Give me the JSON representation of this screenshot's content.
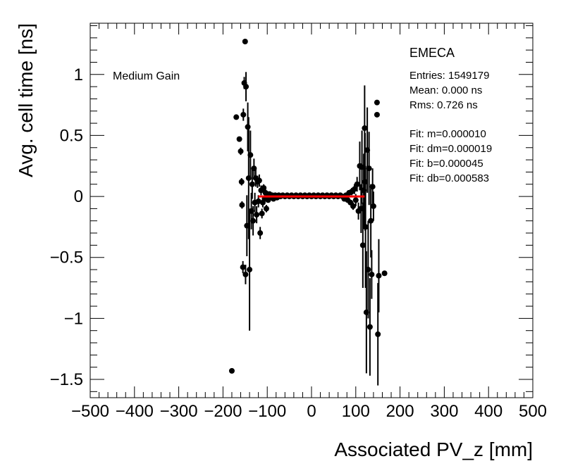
{
  "chart_data": {
    "type": "scatter",
    "title": "",
    "xlabel": "Associated PV_z [mm]",
    "ylabel": "Avg. cell time [ns]",
    "xlim": [
      -500,
      500
    ],
    "ylim": [
      -1.65,
      1.42
    ],
    "xticks": [
      -500,
      -400,
      -300,
      -200,
      -100,
      0,
      100,
      200,
      300,
      400,
      500
    ],
    "xtick_labels": [
      "−500",
      "−400",
      "−300",
      "−200",
      "−100",
      "0",
      "100",
      "200",
      "300",
      "400",
      "500"
    ],
    "yticks": [
      -1.5,
      -1,
      -0.5,
      0,
      0.5,
      1
    ],
    "ytick_labels": [
      "−1.5",
      "−1",
      "−0.5",
      "0",
      "0.5",
      "1"
    ],
    "grid": false,
    "annotation": "Medium Gain",
    "stats_box": {
      "title": "EMECA",
      "lines": [
        "Entries: 1549179",
        "Mean: 0.000 ns",
        "Rms: 0.726 ns",
        "",
        "Fit: m=0.000010",
        "Fit: dm=0.000019",
        "Fit: b=0.000045",
        "Fit: db=0.000583"
      ]
    },
    "fit_line": {
      "x": [
        -120,
        120
      ],
      "y": [
        0.0,
        0.0
      ],
      "color": "#ff0000"
    },
    "marker_color": "#000000",
    "points": [
      {
        "x": -180,
        "y": -1.43,
        "err": 0.0
      },
      {
        "x": -170,
        "y": 0.65,
        "err": 0.0
      },
      {
        "x": -163,
        "y": 0.47,
        "err": 0.0
      },
      {
        "x": -160,
        "y": 0.37,
        "err": 0.03
      },
      {
        "x": -158,
        "y": 0.12,
        "err": 0.03
      },
      {
        "x": -157,
        "y": -0.07,
        "err": 0.03
      },
      {
        "x": -155,
        "y": -0.58,
        "err": 0.05
      },
      {
        "x": -154,
        "y": 0.67,
        "err": 0.05
      },
      {
        "x": -152,
        "y": 0.93,
        "err": 0.05
      },
      {
        "x": -150,
        "y": 1.27,
        "err": 0.0
      },
      {
        "x": -149,
        "y": -0.64,
        "err": 0.08
      },
      {
        "x": -148,
        "y": 0.9,
        "err": 0.12
      },
      {
        "x": -146,
        "y": -0.24,
        "err": 0.25
      },
      {
        "x": -144,
        "y": 0.57,
        "err": 0.2
      },
      {
        "x": -142,
        "y": 0.15,
        "err": 0.5
      },
      {
        "x": -140,
        "y": -0.6,
        "err": 0.5
      },
      {
        "x": -138,
        "y": 0.34,
        "err": 0.2
      },
      {
        "x": -136,
        "y": -0.12,
        "err": 0.15
      },
      {
        "x": -134,
        "y": 0.1,
        "err": 0.12
      },
      {
        "x": -132,
        "y": -0.2,
        "err": 0.12
      },
      {
        "x": -130,
        "y": 0.23,
        "err": 0.08
      },
      {
        "x": -128,
        "y": -0.05,
        "err": 0.08
      },
      {
        "x": -126,
        "y": 0.15,
        "err": 0.07
      },
      {
        "x": -124,
        "y": -0.15,
        "err": 0.07
      },
      {
        "x": -122,
        "y": 0.12,
        "err": 0.05
      },
      {
        "x": -120,
        "y": -0.04,
        "err": 0.05
      },
      {
        "x": -118,
        "y": 0.13,
        "err": 0.05
      },
      {
        "x": -116,
        "y": -0.3,
        "err": 0.05
      },
      {
        "x": -114,
        "y": 0.05,
        "err": 0.04
      },
      {
        "x": -112,
        "y": -0.14,
        "err": 0.04
      },
      {
        "x": -110,
        "y": -0.05,
        "err": 0.04
      },
      {
        "x": -108,
        "y": 0.07,
        "err": 0.03
      },
      {
        "x": -106,
        "y": -0.02,
        "err": 0.03
      },
      {
        "x": -104,
        "y": 0.03,
        "err": 0.03
      },
      {
        "x": -102,
        "y": -0.1,
        "err": 0.03
      },
      {
        "x": -100,
        "y": 0.02,
        "err": 0.02
      },
      {
        "x": -98,
        "y": -0.03,
        "err": 0.02
      },
      {
        "x": -95,
        "y": 0.02,
        "err": 0.02
      },
      {
        "x": -92,
        "y": -0.01,
        "err": 0.02
      },
      {
        "x": -89,
        "y": 0.01,
        "err": 0.02
      },
      {
        "x": -86,
        "y": -0.02,
        "err": 0.02
      },
      {
        "x": -82,
        "y": 0.01,
        "err": 0.015
      },
      {
        "x": -78,
        "y": -0.01,
        "err": 0.015
      },
      {
        "x": -74,
        "y": 0.01,
        "err": 0.015
      },
      {
        "x": -70,
        "y": 0.0,
        "err": 0.015
      },
      {
        "x": -65,
        "y": 0.01,
        "err": 0.01
      },
      {
        "x": -60,
        "y": 0.0,
        "err": 0.01
      },
      {
        "x": -55,
        "y": 0.01,
        "err": 0.01
      },
      {
        "x": -50,
        "y": 0.0,
        "err": 0.01
      },
      {
        "x": -45,
        "y": 0.01,
        "err": 0.01
      },
      {
        "x": -40,
        "y": 0.0,
        "err": 0.01
      },
      {
        "x": -35,
        "y": 0.01,
        "err": 0.01
      },
      {
        "x": -30,
        "y": 0.0,
        "err": 0.01
      },
      {
        "x": -25,
        "y": 0.01,
        "err": 0.01
      },
      {
        "x": -20,
        "y": 0.0,
        "err": 0.01
      },
      {
        "x": -15,
        "y": 0.01,
        "err": 0.01
      },
      {
        "x": -10,
        "y": 0.0,
        "err": 0.01
      },
      {
        "x": -5,
        "y": 0.01,
        "err": 0.01
      },
      {
        "x": 0,
        "y": 0.0,
        "err": 0.01
      },
      {
        "x": 5,
        "y": 0.01,
        "err": 0.01
      },
      {
        "x": 10,
        "y": 0.0,
        "err": 0.01
      },
      {
        "x": 15,
        "y": 0.01,
        "err": 0.01
      },
      {
        "x": 20,
        "y": 0.0,
        "err": 0.01
      },
      {
        "x": 25,
        "y": 0.01,
        "err": 0.01
      },
      {
        "x": 30,
        "y": 0.0,
        "err": 0.01
      },
      {
        "x": 35,
        "y": 0.01,
        "err": 0.01
      },
      {
        "x": 40,
        "y": 0.0,
        "err": 0.01
      },
      {
        "x": 45,
        "y": 0.01,
        "err": 0.01
      },
      {
        "x": 50,
        "y": 0.0,
        "err": 0.01
      },
      {
        "x": 55,
        "y": 0.01,
        "err": 0.01
      },
      {
        "x": 60,
        "y": 0.0,
        "err": 0.01
      },
      {
        "x": 65,
        "y": 0.01,
        "err": 0.01
      },
      {
        "x": 70,
        "y": 0.0,
        "err": 0.015
      },
      {
        "x": 74,
        "y": -0.02,
        "err": 0.015
      },
      {
        "x": 78,
        "y": 0.01,
        "err": 0.015
      },
      {
        "x": 82,
        "y": -0.03,
        "err": 0.02
      },
      {
        "x": 85,
        "y": 0.03,
        "err": 0.02
      },
      {
        "x": 88,
        "y": -0.05,
        "err": 0.02
      },
      {
        "x": 91,
        "y": 0.04,
        "err": 0.03
      },
      {
        "x": 94,
        "y": -0.08,
        "err": 0.03
      },
      {
        "x": 97,
        "y": 0.06,
        "err": 0.04
      },
      {
        "x": 100,
        "y": -0.03,
        "err": 0.05
      },
      {
        "x": 103,
        "y": 0.1,
        "err": 0.06
      },
      {
        "x": 106,
        "y": -0.12,
        "err": 0.07
      },
      {
        "x": 109,
        "y": 0.25,
        "err": 0.2
      },
      {
        "x": 112,
        "y": -0.1,
        "err": 0.2
      },
      {
        "x": 114,
        "y": 0.24,
        "err": 0.3
      },
      {
        "x": 116,
        "y": -0.4,
        "err": 0.35
      },
      {
        "x": 118,
        "y": 0.05,
        "err": 0.3
      },
      {
        "x": 120,
        "y": 0.56,
        "err": 0.35
      },
      {
        "x": 121,
        "y": 0.12,
        "err": 0.4
      },
      {
        "x": 122,
        "y": -0.25,
        "err": 0.5
      },
      {
        "x": 124,
        "y": -0.95,
        "err": 0.5
      },
      {
        "x": 126,
        "y": 0.38,
        "err": 0.35
      },
      {
        "x": 128,
        "y": -0.6,
        "err": 0.4
      },
      {
        "x": 130,
        "y": 0.23,
        "err": 0.3
      },
      {
        "x": 132,
        "y": -1.07,
        "err": 0.4
      },
      {
        "x": 134,
        "y": -0.2,
        "err": 0.3
      },
      {
        "x": 136,
        "y": -0.64,
        "err": 0.2
      },
      {
        "x": 138,
        "y": 0.08,
        "err": 0.15
      },
      {
        "x": 140,
        "y": -0.08,
        "err": 0.12
      },
      {
        "x": 148,
        "y": 0.77,
        "err": 0.0
      },
      {
        "x": 148,
        "y": 0.67,
        "err": 0.0
      },
      {
        "x": 150,
        "y": -1.13,
        "err": 0.42
      },
      {
        "x": 152,
        "y": -0.65,
        "err": 0.3
      },
      {
        "x": 165,
        "y": -0.63,
        "err": 0.0
      }
    ]
  }
}
